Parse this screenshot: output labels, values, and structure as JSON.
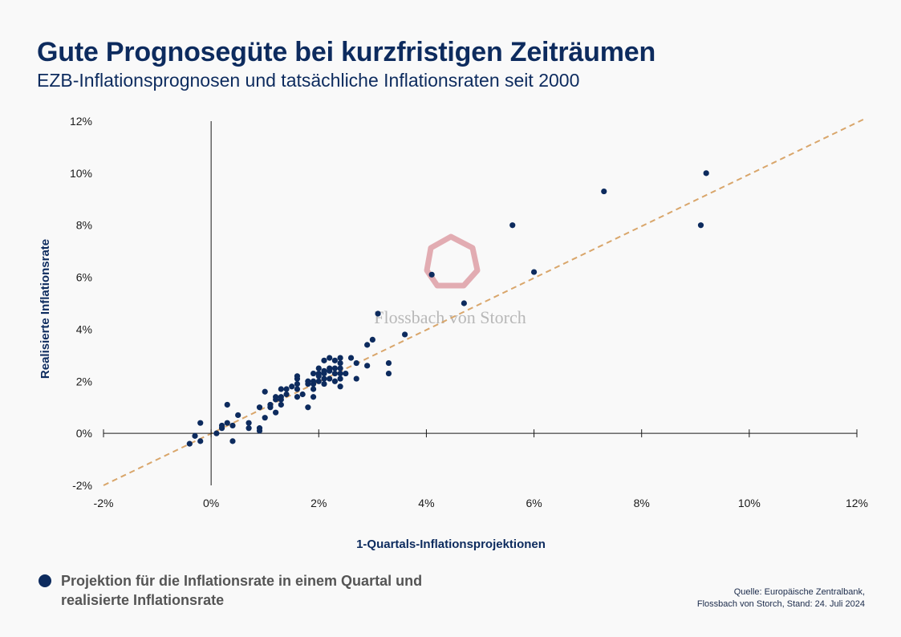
{
  "header": {
    "title": "Gute Prognosegüte bei kurzfristigen Zeiträumen",
    "subtitle": "EZB-Inflationsprognosen und tatsächliche Inflationsraten seit 2000"
  },
  "legend": {
    "label": "Projektion für die Inflationsrate in einem Quartal und realisierte Inflationsrate"
  },
  "source": {
    "line1": "Quelle: Europäische Zentralbank,",
    "line2": "Flossbach von Storch, Stand: 24. Juli 2024"
  },
  "watermark": {
    "text": "Flossbach von Storch"
  },
  "colors": {
    "points": "#0d2b5e",
    "trendline": "#d9a66b",
    "axis": "#1a1a1a",
    "title": "#0d2b5e",
    "watermark_logo": "#d98c94"
  },
  "chart_data": {
    "type": "scatter",
    "xlabel": "1-Quartals-Inflationsprojektionen",
    "ylabel": "Realisierte Inflationsrate",
    "xlim": [
      -2,
      12
    ],
    "ylim": [
      -2,
      12
    ],
    "x_ticks": [
      -2,
      0,
      2,
      4,
      6,
      8,
      10,
      12
    ],
    "y_ticks": [
      -2,
      0,
      2,
      4,
      6,
      8,
      10,
      12
    ],
    "x_tick_labels": [
      "-2%",
      "0%",
      "2%",
      "4%",
      "6%",
      "8%",
      "10%",
      "12%"
    ],
    "y_tick_labels": [
      "-2%",
      "0%",
      "2%",
      "4%",
      "6%",
      "8%",
      "10%",
      "12%"
    ],
    "grid": false,
    "trendline": {
      "style": "dashed",
      "points": [
        [
          -2,
          -2
        ],
        [
          12,
          12
        ]
      ]
    },
    "series": [
      {
        "name": "Projektion für die Inflationsrate in einem Quartal und realisierte Inflationsrate",
        "points": [
          [
            -0.4,
            -0.4
          ],
          [
            -0.3,
            -0.1
          ],
          [
            -0.2,
            0.4
          ],
          [
            -0.2,
            -0.3
          ],
          [
            0.1,
            0.0
          ],
          [
            0.2,
            0.2
          ],
          [
            0.2,
            0.3
          ],
          [
            0.3,
            1.1
          ],
          [
            0.3,
            0.4
          ],
          [
            0.4,
            0.3
          ],
          [
            0.4,
            -0.3
          ],
          [
            0.5,
            0.7
          ],
          [
            0.7,
            0.4
          ],
          [
            0.7,
            0.2
          ],
          [
            0.9,
            0.2
          ],
          [
            0.9,
            0.1
          ],
          [
            0.9,
            1.0
          ],
          [
            1.0,
            0.6
          ],
          [
            1.0,
            1.6
          ],
          [
            1.1,
            1.0
          ],
          [
            1.1,
            1.1
          ],
          [
            1.2,
            0.8
          ],
          [
            1.2,
            1.3
          ],
          [
            1.2,
            1.4
          ],
          [
            1.3,
            1.1
          ],
          [
            1.3,
            1.3
          ],
          [
            1.3,
            1.4
          ],
          [
            1.3,
            1.7
          ],
          [
            1.4,
            1.5
          ],
          [
            1.4,
            1.7
          ],
          [
            1.5,
            1.8
          ],
          [
            1.6,
            1.4
          ],
          [
            1.6,
            1.7
          ],
          [
            1.6,
            1.9
          ],
          [
            1.6,
            2.1
          ],
          [
            1.6,
            2.2
          ],
          [
            1.7,
            1.5
          ],
          [
            1.8,
            1.0
          ],
          [
            1.8,
            1.9
          ],
          [
            1.8,
            2.0
          ],
          [
            1.9,
            1.4
          ],
          [
            1.9,
            1.7
          ],
          [
            1.9,
            1.9
          ],
          [
            1.9,
            2.0
          ],
          [
            1.9,
            2.3
          ],
          [
            2.0,
            2.0
          ],
          [
            2.0,
            2.2
          ],
          [
            2.0,
            2.3
          ],
          [
            2.0,
            2.5
          ],
          [
            2.1,
            1.9
          ],
          [
            2.1,
            2.1
          ],
          [
            2.1,
            2.3
          ],
          [
            2.1,
            2.4
          ],
          [
            2.1,
            2.8
          ],
          [
            2.2,
            2.1
          ],
          [
            2.2,
            2.4
          ],
          [
            2.2,
            2.5
          ],
          [
            2.2,
            2.9
          ],
          [
            2.3,
            2.0
          ],
          [
            2.3,
            2.3
          ],
          [
            2.3,
            2.5
          ],
          [
            2.3,
            2.8
          ],
          [
            2.4,
            1.8
          ],
          [
            2.4,
            2.1
          ],
          [
            2.4,
            2.3
          ],
          [
            2.4,
            2.5
          ],
          [
            2.4,
            2.7
          ],
          [
            2.4,
            2.9
          ],
          [
            2.5,
            2.3
          ],
          [
            2.6,
            2.9
          ],
          [
            2.7,
            2.1
          ],
          [
            2.7,
            2.7
          ],
          [
            2.9,
            2.6
          ],
          [
            2.9,
            3.4
          ],
          [
            3.0,
            3.6
          ],
          [
            3.1,
            4.6
          ],
          [
            3.3,
            2.3
          ],
          [
            3.3,
            2.7
          ],
          [
            3.6,
            3.8
          ],
          [
            4.1,
            6.1
          ],
          [
            4.7,
            5.0
          ],
          [
            5.6,
            8.0
          ],
          [
            6.0,
            6.2
          ],
          [
            7.3,
            9.3
          ],
          [
            9.1,
            8.0
          ],
          [
            9.2,
            10.0
          ]
        ]
      }
    ]
  }
}
